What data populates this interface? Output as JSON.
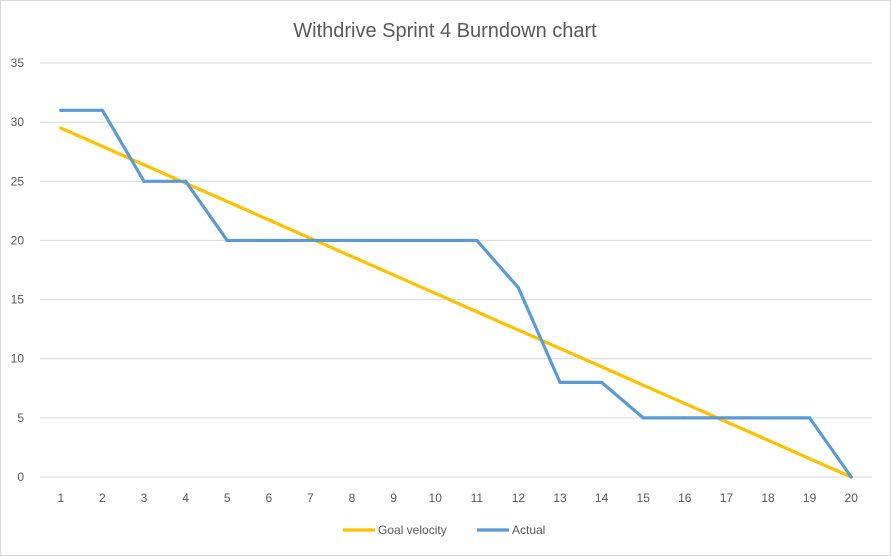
{
  "chart_data": {
    "type": "line",
    "title": "Withdrive Sprint 4 Burndown chart",
    "xlabel": "",
    "ylabel": "",
    "x": [
      1,
      2,
      3,
      4,
      5,
      6,
      7,
      8,
      9,
      10,
      11,
      12,
      13,
      14,
      15,
      16,
      17,
      18,
      19,
      20
    ],
    "ylim": [
      0,
      35
    ],
    "yticks": [
      0,
      5,
      10,
      15,
      20,
      25,
      30,
      35
    ],
    "grid": true,
    "legend_position": "bottom",
    "series": [
      {
        "name": "Goal velocity",
        "color": "#FFC000",
        "values": [
          29.5,
          27.95,
          26.39,
          24.84,
          23.29,
          21.74,
          20.18,
          18.63,
          17.08,
          15.53,
          13.97,
          12.42,
          10.87,
          9.32,
          7.76,
          6.21,
          4.66,
          3.11,
          1.55,
          0
        ]
      },
      {
        "name": "Actual",
        "color": "#5B9BD5",
        "values": [
          31,
          31,
          25,
          25,
          20,
          20,
          20,
          20,
          20,
          20,
          20,
          16,
          8,
          8,
          5,
          5,
          5,
          5,
          5,
          0
        ]
      }
    ]
  }
}
